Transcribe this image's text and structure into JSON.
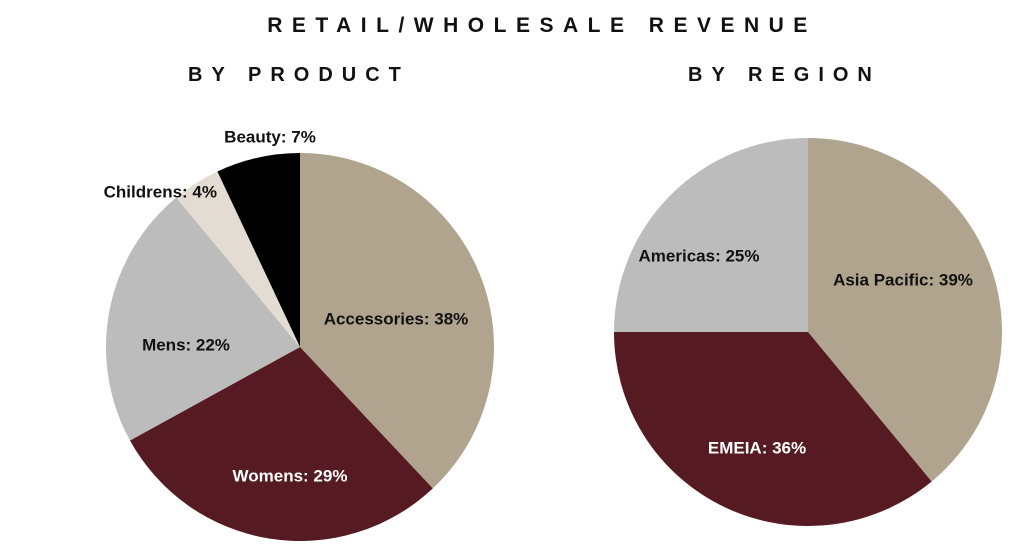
{
  "title": "RETAIL/WHOLESALE REVENUE",
  "colors": {
    "tan": "#b0a48e",
    "maroon": "#561a22",
    "gray": "#bcbcbc",
    "cream": "#e3dcd2",
    "black": "#000000"
  },
  "chart_data": [
    {
      "type": "pie",
      "title": "BY PRODUCT",
      "slices": [
        {
          "label": "Accessories: 38%",
          "value": 38,
          "color": "#b0a48e",
          "text_color": "#111111"
        },
        {
          "label": "Womens: 29%",
          "value": 29,
          "color": "#561a22",
          "text_color": "#ffffff"
        },
        {
          "label": "Mens: 22%",
          "value": 22,
          "color": "#bcbcbc",
          "text_color": "#111111"
        },
        {
          "label": "Childrens: 4%",
          "value": 4,
          "color": "#e3dcd2",
          "text_color": "#111111"
        },
        {
          "label": "Beauty: 7%",
          "value": 7,
          "color": "#000000",
          "text_color": "#111111"
        }
      ]
    },
    {
      "type": "pie",
      "title": "BY REGION",
      "slices": [
        {
          "label": "Asia Pacific: 39%",
          "value": 39,
          "color": "#b0a48e",
          "text_color": "#111111"
        },
        {
          "label": "EMEIA: 36%",
          "value": 36,
          "color": "#561a22",
          "text_color": "#ffffff"
        },
        {
          "label": "Americas: 25%",
          "value": 25,
          "color": "#bcbcbc",
          "text_color": "#111111"
        }
      ]
    }
  ]
}
